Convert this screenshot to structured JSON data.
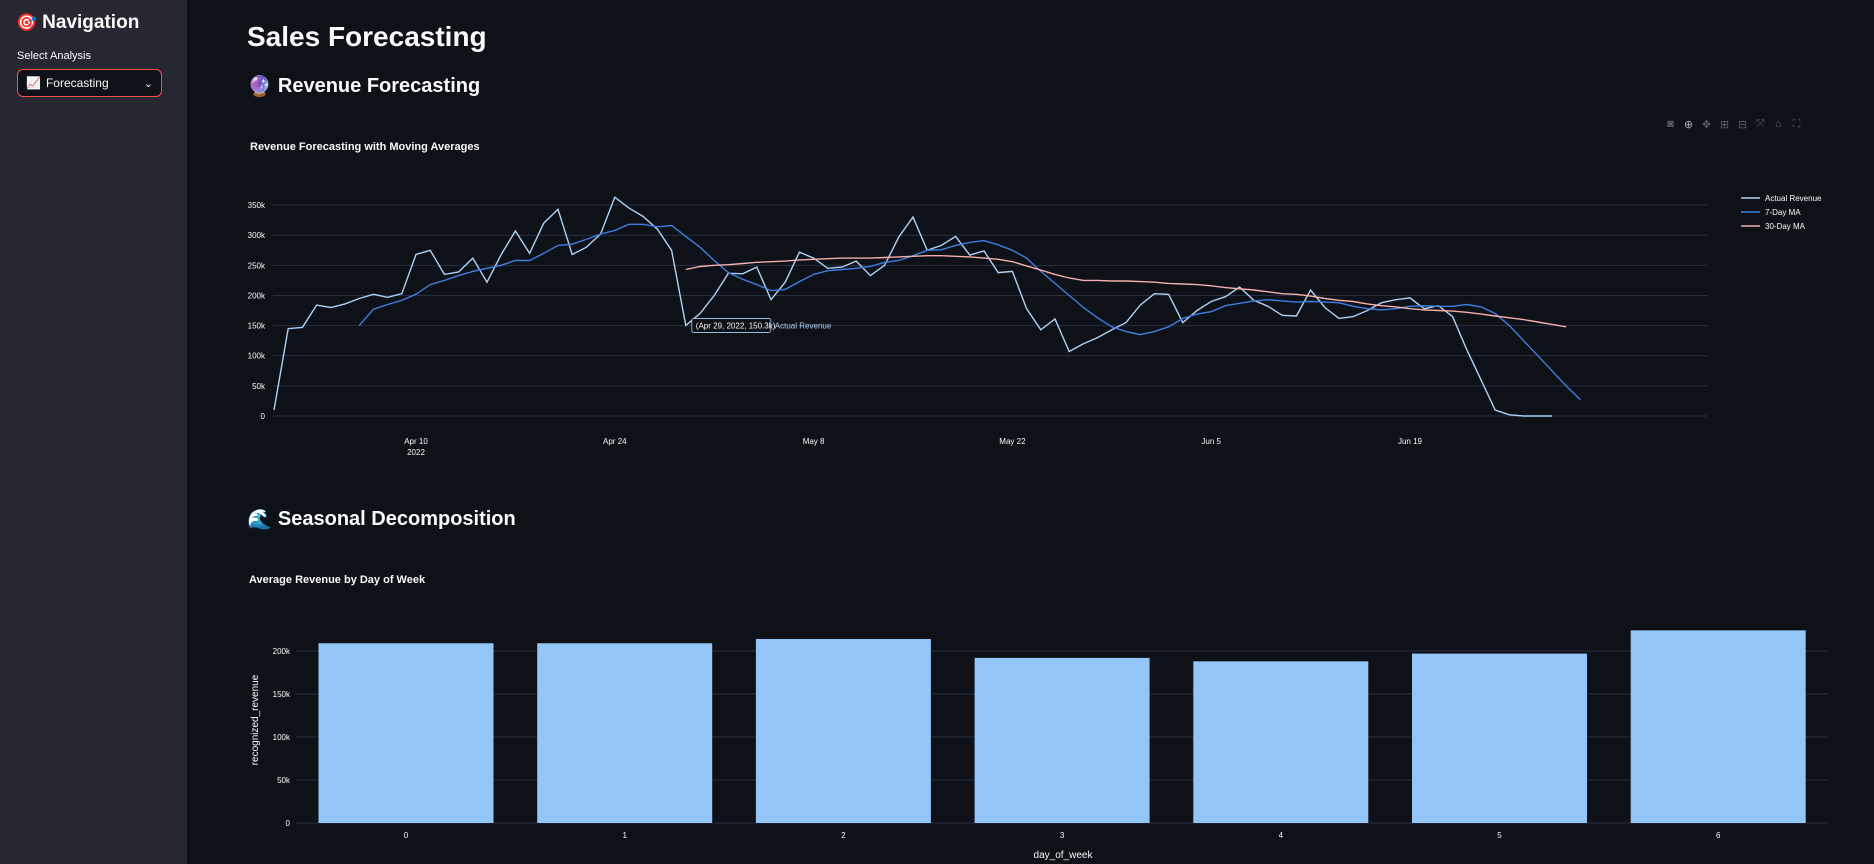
{
  "sidebar": {
    "title": "Navigation",
    "title_icon": "🎯",
    "select_label": "Select Analysis",
    "select_value": "Forecasting",
    "select_icon": "📈"
  },
  "page": {
    "title": "Sales Forecasting",
    "section1": {
      "icon": "🔮",
      "title": "Revenue Forecasting"
    },
    "section2": {
      "icon": "🌊",
      "title": "Seasonal Decomposition"
    }
  },
  "toolbar": [
    "camera-icon",
    "zoom-icon",
    "pan-icon",
    "zoom-in-icon",
    "zoom-out-icon",
    "autoscale-icon",
    "reset-axes-icon",
    "fullscreen-icon"
  ],
  "colors": {
    "actual": "#aed2f5",
    "ma7": "#3d7fe0",
    "ma30": "#f4b0ab",
    "bar": "#93c5f7",
    "accent": "#ff4b4b"
  },
  "chart_data": [
    {
      "type": "line",
      "title": "Revenue Forecasting with Moving Averages",
      "x_start": "2022-03-31",
      "x_tick_labels": [
        "Apr 10\n2022",
        "Apr 24",
        "May 8",
        "May 22",
        "Jun 5",
        "Jun 19"
      ],
      "x_tick_dates": [
        "2022-04-10",
        "2022-04-24",
        "2022-05-08",
        "2022-05-22",
        "2022-06-05",
        "2022-06-19"
      ],
      "ylim": [
        0,
        370000
      ],
      "y_ticks": [
        0,
        50000,
        100000,
        150000,
        200000,
        250000,
        300000,
        350000
      ],
      "y_tick_labels": [
        "0",
        "50k",
        "100k",
        "150k",
        "200k",
        "250k",
        "300k",
        "350k"
      ],
      "legend": "top-right",
      "series": [
        {
          "name": "Actual Revenue",
          "start_day": 0,
          "values": [
            10000,
            145000,
            147000,
            184000,
            180000,
            186000,
            195000,
            202000,
            197000,
            203000,
            268000,
            275000,
            235000,
            239000,
            262000,
            222000,
            268000,
            307000,
            270000,
            320000,
            343000,
            268000,
            280000,
            302000,
            363000,
            345000,
            331000,
            310000,
            275000,
            150300,
            170000,
            200000,
            237000,
            236000,
            247000,
            193000,
            222000,
            272000,
            262000,
            245000,
            247000,
            257000,
            233000,
            250000,
            297000,
            330000,
            275000,
            283000,
            298000,
            267000,
            274000,
            238000,
            240000,
            178000,
            143000,
            161000,
            107000,
            120000,
            130000,
            143000,
            155000,
            184000,
            203000,
            202000,
            155000,
            175000,
            190000,
            198000,
            214000,
            192000,
            182000,
            167000,
            166000,
            209000,
            180000,
            162000,
            165000,
            175000,
            188000,
            193000,
            196000,
            178000,
            183000,
            165000,
            110000,
            60000,
            10000,
            2000,
            0,
            0,
            0
          ]
        },
        {
          "name": "7-Day MA",
          "start_day": 6,
          "values": [
            150000,
            177000,
            185000,
            192000,
            202000,
            218000,
            225000,
            233000,
            240000,
            245000,
            250000,
            258000,
            258000,
            270000,
            283000,
            285000,
            293000,
            302000,
            308000,
            318000,
            318000,
            314000,
            316000,
            298000,
            280000,
            258000,
            238000,
            227000,
            218000,
            208000,
            210000,
            223000,
            235000,
            241000,
            243000,
            245000,
            248000,
            255000,
            258000,
            266000,
            275000,
            276000,
            283000,
            288000,
            291000,
            284000,
            275000,
            262000,
            240000,
            220000,
            200000,
            180000,
            163000,
            148000,
            140000,
            135000,
            140000,
            148000,
            162000,
            169000,
            173000,
            183000,
            187000,
            191000,
            193000,
            191000,
            189000,
            190000,
            189000,
            188000,
            182000,
            178000,
            176000,
            178000,
            182000,
            183000,
            182000,
            182000,
            185000,
            181000,
            170000,
            150000,
            125000,
            100000,
            75000,
            50000,
            27000
          ]
        },
        {
          "name": "30-Day MA",
          "start_day": 29,
          "values": [
            243000,
            248000,
            250000,
            251000,
            253000,
            255000,
            256000,
            257000,
            259000,
            260000,
            261000,
            262000,
            262000,
            262000,
            263000,
            264000,
            265000,
            266000,
            266000,
            265000,
            264000,
            262000,
            260000,
            256000,
            249000,
            242000,
            235000,
            229000,
            225000,
            225000,
            224000,
            224000,
            223000,
            222000,
            220000,
            219000,
            218000,
            216000,
            213000,
            211000,
            209000,
            206000,
            203000,
            202000,
            199000,
            195000,
            192000,
            190000,
            186000,
            183000,
            181000,
            178000,
            176000,
            175000,
            174000,
            172000,
            169000,
            166000,
            163000,
            160000,
            156000,
            152000,
            148000
          ]
        }
      ],
      "hover": {
        "label": "(Apr 29, 2022, 150.3k)",
        "series": "Actual Revenue",
        "x": "2022-04-29",
        "y": 150300
      }
    },
    {
      "type": "bar",
      "title": "Average Revenue by Day of Week",
      "xlabel": "day_of_week",
      "ylabel": "recognized_revenue",
      "categories": [
        "0",
        "1",
        "2",
        "3",
        "4",
        "5",
        "6"
      ],
      "values": [
        209000,
        209000,
        214000,
        192000,
        188000,
        197000,
        224000
      ],
      "ylim": [
        0,
        225000
      ],
      "y_ticks": [
        0,
        50000,
        100000,
        150000,
        200000
      ],
      "y_tick_labels": [
        "0",
        "50k",
        "100k",
        "150k",
        "200k"
      ]
    }
  ]
}
